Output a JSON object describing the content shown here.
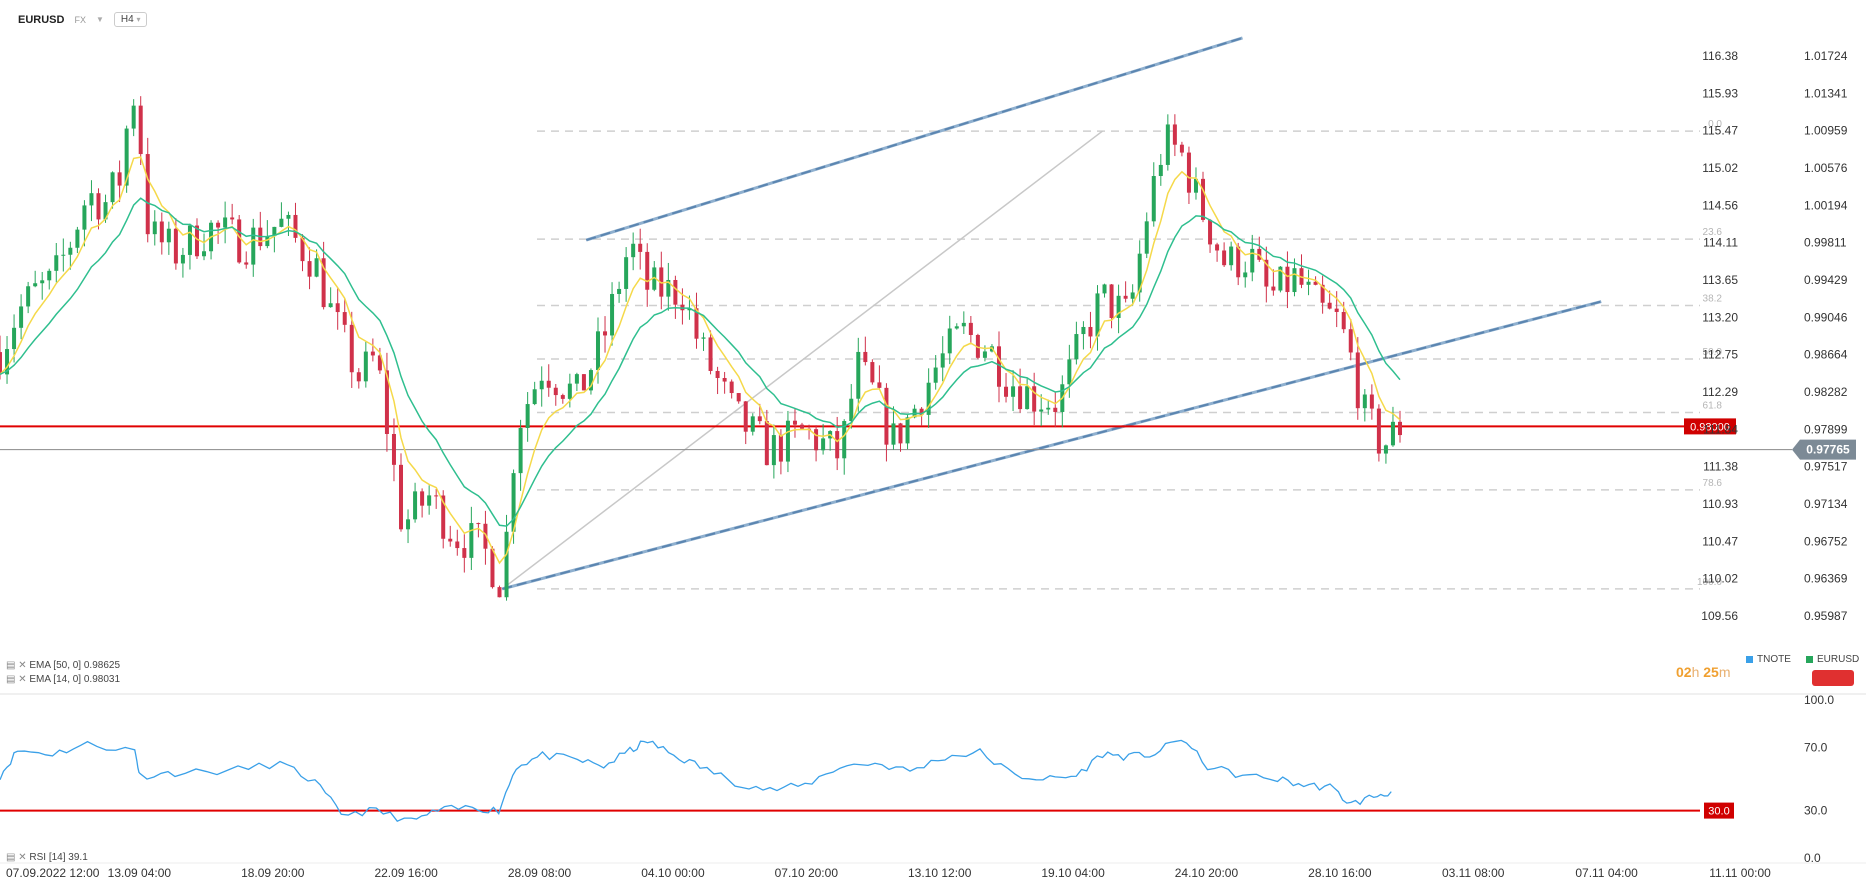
{
  "header": {
    "symbol": "EURUSD",
    "market": "FX",
    "timeframe": "H4"
  },
  "indicators": {
    "ema50": "EMA [50, 0] 0.98625",
    "ema14": "EMA [14, 0] 0.98031",
    "rsi": "RSI [14] 39.1"
  },
  "legend": {
    "tnote": "TNOTE",
    "eurusd": "EURUSD"
  },
  "timer": {
    "h": "02",
    "m": "25"
  },
  "colors": {
    "up": "#26a65b",
    "down": "#d0314a",
    "ema14": "#f5d94a",
    "ema50": "#2fbf8f",
    "rsi": "#3aa0e8",
    "level": "#e00000",
    "trend": "#5b85b0"
  },
  "chart_data": {
    "type": "candlestick",
    "left_axis": {
      "label": "TNOTE",
      "ticks": [
        116.38,
        115.93,
        115.47,
        115.02,
        114.56,
        114.11,
        113.65,
        113.2,
        112.75,
        112.29,
        111.84,
        111.38,
        110.93,
        110.47,
        110.02,
        109.56
      ]
    },
    "right_axis": {
      "label": "EURUSD",
      "ticks": [
        "1.01724",
        "1.01341",
        "1.00959",
        "1.00576",
        "1.00194",
        "0.99811",
        "0.99429",
        "0.99046",
        "0.98664",
        "0.98282",
        "0.97899",
        "0.97517",
        "0.97134",
        "0.96752",
        "0.96369",
        "0.95987"
      ]
    },
    "price_range": [
      0.9534,
      1.02
    ],
    "x_labels": [
      "07.09.2022 12:00",
      "13.09 04:00",
      "18.09 20:00",
      "22.09 16:00",
      "28.09 08:00",
      "04.10 00:00",
      "07.10 20:00",
      "13.10 12:00",
      "19.10 04:00",
      "24.10 20:00",
      "28.10 16:00",
      "03.11 08:00",
      "07.11 04:00",
      "11.11 00:00"
    ],
    "fib_levels": [
      {
        "label": "0.0",
        "price": 1.0098
      },
      {
        "label": "23.6",
        "price": 0.9989
      },
      {
        "label": "38.2",
        "price": 0.9922
      },
      {
        "label": "50.0",
        "price": 0.9868
      },
      {
        "label": "61.8",
        "price": 0.9814
      },
      {
        "label": "78.6",
        "price": 0.9736
      },
      {
        "label": "100.0",
        "price": 0.9636
      }
    ],
    "horizontal_line": {
      "label": "0.98000",
      "price": 0.98
    },
    "current_price": {
      "label": "0.97765",
      "price": 0.97765
    },
    "trendlines": [
      {
        "from": [
          0.287,
          0.9636
        ],
        "to": [
          0.915,
          0.9926
        ]
      },
      {
        "from": [
          0.335,
          0.9988
        ],
        "to": [
          0.71,
          1.0192
        ]
      }
    ],
    "gray_line": {
      "from": [
        0.287,
        0.9636
      ],
      "to": [
        0.63,
        1.0098
      ]
    },
    "ema14_label": "EMA 14",
    "ema50_label": "EMA 50",
    "keypoints": [
      [
        0.0,
        0.9875
      ],
      [
        0.01,
        0.9915
      ],
      [
        0.02,
        0.9935
      ],
      [
        0.03,
        0.9945
      ],
      [
        0.04,
        0.9985
      ],
      [
        0.05,
        1.0035
      ],
      [
        0.06,
        1.0025
      ],
      [
        0.07,
        1.0055
      ],
      [
        0.075,
        1.015
      ],
      [
        0.08,
        1.009
      ],
      [
        0.085,
        0.9995
      ],
      [
        0.1,
        0.9975
      ],
      [
        0.12,
        1.0
      ],
      [
        0.14,
        0.9985
      ],
      [
        0.16,
        1.0005
      ],
      [
        0.18,
        0.9965
      ],
      [
        0.19,
        0.991
      ],
      [
        0.205,
        0.985
      ],
      [
        0.215,
        0.987
      ],
      [
        0.23,
        0.97
      ],
      [
        0.245,
        0.973
      ],
      [
        0.26,
        0.969
      ],
      [
        0.275,
        0.968
      ],
      [
        0.287,
        0.964
      ],
      [
        0.295,
        0.98
      ],
      [
        0.31,
        0.986
      ],
      [
        0.33,
        0.983
      ],
      [
        0.345,
        0.989
      ],
      [
        0.36,
        0.9985
      ],
      [
        0.37,
        0.994
      ],
      [
        0.39,
        0.9935
      ],
      [
        0.4,
        0.988
      ],
      [
        0.42,
        0.981
      ],
      [
        0.44,
        0.9775
      ],
      [
        0.46,
        0.9795
      ],
      [
        0.48,
        0.977
      ],
      [
        0.49,
        0.986
      ],
      [
        0.5,
        0.983
      ],
      [
        0.51,
        0.9785
      ],
      [
        0.52,
        0.981
      ],
      [
        0.535,
        0.986
      ],
      [
        0.55,
        0.9895
      ],
      [
        0.565,
        0.988
      ],
      [
        0.575,
        0.985
      ],
      [
        0.59,
        0.983
      ],
      [
        0.605,
        0.9825
      ],
      [
        0.62,
        0.9895
      ],
      [
        0.63,
        0.993
      ],
      [
        0.645,
        0.991
      ],
      [
        0.655,
        1.001
      ],
      [
        0.665,
        1.0088
      ],
      [
        0.675,
        1.0075
      ],
      [
        0.685,
        1.0025
      ],
      [
        0.7,
        0.9965
      ],
      [
        0.715,
        0.997
      ],
      [
        0.725,
        0.993
      ],
      [
        0.74,
        0.995
      ],
      [
        0.755,
        0.9915
      ],
      [
        0.765,
        0.9905
      ],
      [
        0.772,
        0.9868
      ],
      [
        0.78,
        0.981
      ],
      [
        0.79,
        0.978
      ],
      [
        0.8,
        0.98
      ]
    ],
    "rsi": {
      "ticks": [
        100.0,
        70.0,
        30.0,
        0.0
      ],
      "level": "30.0",
      "keypoints": [
        [
          0.0,
          52
        ],
        [
          0.01,
          68
        ],
        [
          0.03,
          66
        ],
        [
          0.05,
          72
        ],
        [
          0.077,
          68
        ],
        [
          0.08,
          52
        ],
        [
          0.1,
          54
        ],
        [
          0.13,
          55
        ],
        [
          0.16,
          60
        ],
        [
          0.18,
          48
        ],
        [
          0.195,
          28
        ],
        [
          0.215,
          30
        ],
        [
          0.235,
          23
        ],
        [
          0.25,
          30
        ],
        [
          0.27,
          32
        ],
        [
          0.285,
          30
        ],
        [
          0.295,
          58
        ],
        [
          0.31,
          65
        ],
        [
          0.33,
          62
        ],
        [
          0.345,
          58
        ],
        [
          0.36,
          68
        ],
        [
          0.37,
          74
        ],
        [
          0.385,
          65
        ],
        [
          0.4,
          58
        ],
        [
          0.42,
          48
        ],
        [
          0.44,
          43
        ],
        [
          0.46,
          46
        ],
        [
          0.48,
          58
        ],
        [
          0.5,
          60
        ],
        [
          0.52,
          55
        ],
        [
          0.54,
          64
        ],
        [
          0.56,
          67
        ],
        [
          0.58,
          52
        ],
        [
          0.6,
          50
        ],
        [
          0.615,
          52
        ],
        [
          0.63,
          66
        ],
        [
          0.645,
          64
        ],
        [
          0.66,
          66
        ],
        [
          0.675,
          76
        ],
        [
          0.69,
          58
        ],
        [
          0.71,
          52
        ],
        [
          0.73,
          50
        ],
        [
          0.745,
          46
        ],
        [
          0.76,
          45
        ],
        [
          0.772,
          34
        ],
        [
          0.785,
          39
        ],
        [
          0.795,
          42
        ]
      ]
    }
  }
}
